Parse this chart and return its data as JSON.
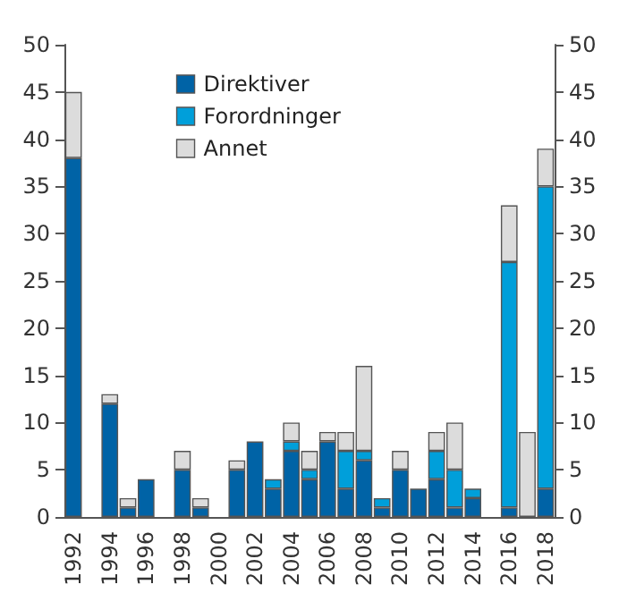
{
  "chart_data": {
    "type": "bar",
    "stacked": true,
    "categories": [
      "1992",
      null,
      "1994",
      null,
      "1996",
      null,
      "1998",
      null,
      "2000",
      null,
      "2002",
      null,
      "2004",
      null,
      "2006",
      null,
      "2008",
      null,
      "2010",
      null,
      "2012",
      null,
      "2014",
      null,
      "2016",
      null,
      "2018"
    ],
    "series": [
      {
        "name": "Direktiver",
        "color": "#0063a6",
        "values": [
          38,
          null,
          12,
          1,
          4,
          null,
          5,
          1,
          null,
          5,
          8,
          3,
          7,
          4,
          8,
          3,
          6,
          1,
          5,
          3,
          4,
          1,
          2,
          null,
          1,
          null,
          3
        ]
      },
      {
        "name": "Forordninger",
        "color": "#009fda",
        "values": [
          null,
          null,
          null,
          null,
          null,
          null,
          null,
          null,
          null,
          null,
          null,
          1,
          1,
          1,
          null,
          4,
          1,
          1,
          null,
          null,
          3,
          4,
          1,
          null,
          26,
          null,
          32
        ]
      },
      {
        "name": "Annet",
        "color": "#dcdcdc",
        "values": [
          7,
          null,
          1,
          1,
          null,
          null,
          2,
          1,
          null,
          1,
          null,
          null,
          2,
          2,
          1,
          2,
          9,
          null,
          2,
          null,
          2,
          5,
          null,
          null,
          6,
          9,
          4
        ]
      }
    ],
    "ylim": [
      0,
      50
    ],
    "yticks": [
      0,
      5,
      10,
      15,
      20,
      25,
      30,
      35,
      40,
      45,
      50
    ],
    "y2lim": [
      0,
      50
    ],
    "y2ticks": [
      0,
      5,
      10,
      15,
      20,
      25,
      30,
      35,
      40,
      45,
      50
    ],
    "legend": "top left",
    "grid": false
  }
}
